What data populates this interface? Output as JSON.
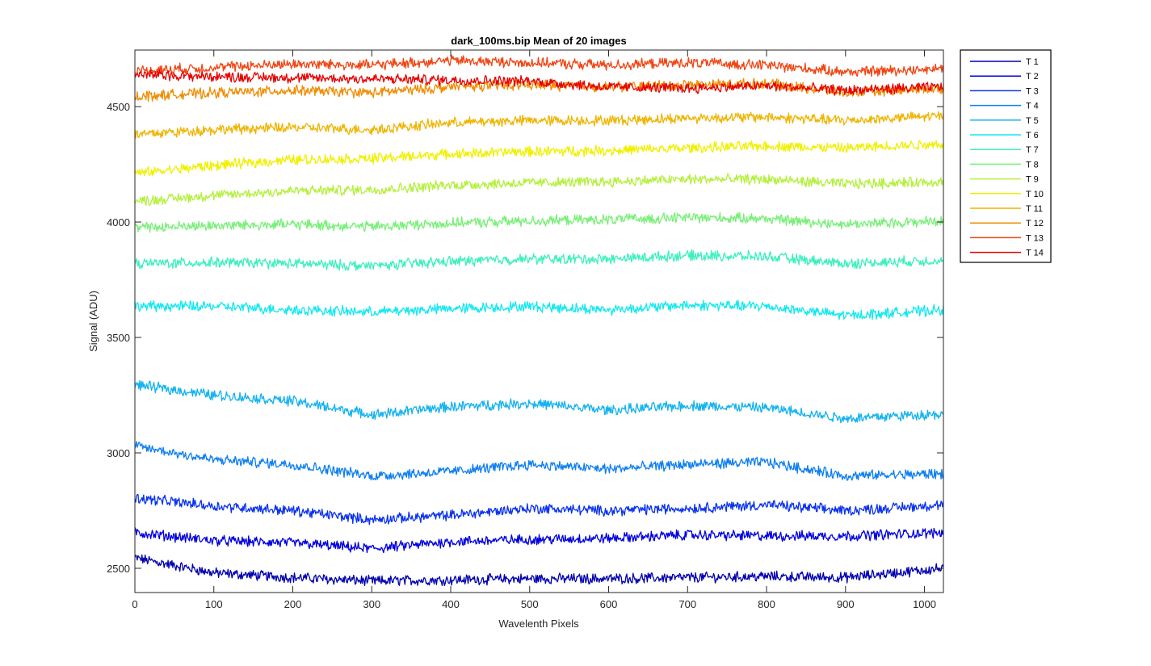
{
  "chart_data": {
    "type": "line",
    "title": "dark_100ms.bip  Mean of 20 images",
    "xlabel": "Wavelenth Pixels",
    "ylabel": "Signal (ADU)",
    "xlim": [
      0,
      1024
    ],
    "ylim": [
      2395,
      4745
    ],
    "xticks": [
      0,
      100,
      200,
      300,
      400,
      500,
      600,
      700,
      800,
      900,
      1000
    ],
    "yticks": [
      2500,
      3000,
      3500,
      4000,
      4500
    ],
    "grid": false,
    "legend_position": "outside-top-right",
    "x_sample_points": [
      0,
      100,
      200,
      300,
      400,
      500,
      600,
      700,
      800,
      900,
      1024
    ],
    "series": [
      {
        "name": "T 1",
        "color": "#0000b0",
        "values": [
          2545,
          2480,
          2460,
          2445,
          2450,
          2455,
          2455,
          2460,
          2465,
          2460,
          2500
        ]
      },
      {
        "name": "T 2",
        "color": "#0000e0",
        "values": [
          2655,
          2620,
          2610,
          2585,
          2615,
          2625,
          2630,
          2645,
          2640,
          2640,
          2655
        ]
      },
      {
        "name": "T 3",
        "color": "#0a32f0",
        "values": [
          2805,
          2770,
          2750,
          2710,
          2730,
          2760,
          2750,
          2760,
          2775,
          2750,
          2775
        ]
      },
      {
        "name": "T 4",
        "color": "#0f7ff0",
        "values": [
          3030,
          2970,
          2950,
          2900,
          2920,
          2950,
          2930,
          2950,
          2960,
          2900,
          2910
        ]
      },
      {
        "name": "T 5",
        "color": "#14b2f0",
        "values": [
          3295,
          3250,
          3225,
          3165,
          3200,
          3215,
          3185,
          3205,
          3195,
          3150,
          3170
        ]
      },
      {
        "name": "T 6",
        "color": "#14e8f0",
        "values": [
          3635,
          3635,
          3620,
          3610,
          3625,
          3635,
          3620,
          3640,
          3635,
          3595,
          3620
        ]
      },
      {
        "name": "T 7",
        "color": "#3cf0be",
        "values": [
          3820,
          3825,
          3820,
          3810,
          3830,
          3840,
          3840,
          3855,
          3850,
          3820,
          3835
        ]
      },
      {
        "name": "T 8",
        "color": "#78f078",
        "values": [
          3975,
          3985,
          3990,
          3980,
          3995,
          4005,
          4010,
          4020,
          4015,
          3990,
          4005
        ]
      },
      {
        "name": "T 9",
        "color": "#b4f03c",
        "values": [
          4090,
          4115,
          4135,
          4140,
          4160,
          4170,
          4175,
          4185,
          4185,
          4165,
          4175
        ]
      },
      {
        "name": "T 10",
        "color": "#f0f000",
        "values": [
          4210,
          4245,
          4270,
          4275,
          4295,
          4305,
          4310,
          4320,
          4330,
          4320,
          4340
        ]
      },
      {
        "name": "T 11",
        "color": "#f0b400",
        "values": [
          4380,
          4400,
          4410,
          4400,
          4430,
          4440,
          4440,
          4450,
          4455,
          4440,
          4460
        ]
      },
      {
        "name": "T 12",
        "color": "#f08c00",
        "values": [
          4545,
          4560,
          4570,
          4560,
          4585,
          4595,
          4585,
          4595,
          4600,
          4560,
          4580
        ]
      },
      {
        "name": "T 13",
        "color": "#f04614",
        "values": [
          4655,
          4670,
          4685,
          4680,
          4700,
          4690,
          4680,
          4690,
          4680,
          4650,
          4665
        ]
      },
      {
        "name": "T 14",
        "color": "#e60000",
        "values": [
          4640,
          4630,
          4625,
          4620,
          4615,
          4610,
          4585,
          4580,
          4590,
          4570,
          4585
        ]
      }
    ]
  }
}
